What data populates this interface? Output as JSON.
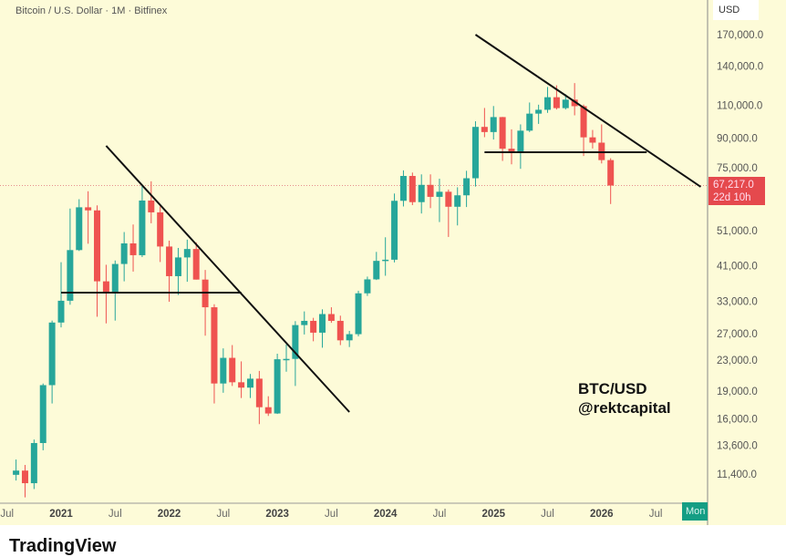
{
  "header": {
    "title": "Bitcoin / U.S. Dollar · 1M · Bitfinex",
    "currency": "USD"
  },
  "last_price": {
    "value": "67,217.0",
    "countdown": "22d 10h",
    "color": "#e5494d"
  },
  "time_marker": {
    "label": "Mon",
    "color": "#149e84"
  },
  "watermark": {
    "line1": "BTC/USD",
    "line2": "@rektcapital"
  },
  "brand": {
    "name": "TradingView"
  },
  "colors": {
    "background": "#fdfbd8",
    "up": "#26a69a",
    "down": "#ef5350",
    "drawings": "#111111"
  },
  "chart_data": {
    "type": "candlestick",
    "title": "Bitcoin / U.S. Dollar · 1M · Bitfinex",
    "y_scale": "log",
    "ylim": [
      10000,
      190000
    ],
    "y_ticks": [
      "170,000.0",
      "140,000.0",
      "110,000.0",
      "90,000.0",
      "75,000.0",
      "51,000.0",
      "41,000.0",
      "33,000.0",
      "27,000.0",
      "23,000.0",
      "19,000.0",
      "16,000.0",
      "13,600.0",
      "11,400.0"
    ],
    "x_ticks": [
      {
        "date": "2020-07",
        "label": "Jul"
      },
      {
        "date": "2021-01",
        "label": "2021"
      },
      {
        "date": "2021-07",
        "label": "Jul"
      },
      {
        "date": "2022-01",
        "label": "2022"
      },
      {
        "date": "2022-07",
        "label": "Jul"
      },
      {
        "date": "2023-01",
        "label": "2023"
      },
      {
        "date": "2023-07",
        "label": "Jul"
      },
      {
        "date": "2024-01",
        "label": "2024"
      },
      {
        "date": "2024-07",
        "label": "Jul"
      },
      {
        "date": "2025-01",
        "label": "2025"
      },
      {
        "date": "2025-07",
        "label": "Jul"
      },
      {
        "date": "2026-01",
        "label": "2026"
      },
      {
        "date": "2026-07",
        "label": "Jul"
      }
    ],
    "grid": false,
    "start": "2020-08",
    "columns": [
      "open",
      "high",
      "low",
      "close"
    ],
    "candles": [
      [
        11350,
        12470,
        10960,
        11650
      ],
      [
        11650,
        12060,
        9880,
        10780
      ],
      [
        10780,
        14100,
        10400,
        13800
      ],
      [
        13800,
        19900,
        13200,
        19700
      ],
      [
        19700,
        29300,
        17600,
        28950
      ],
      [
        28950,
        41950,
        28100,
        33100
      ],
      [
        33100,
        58350,
        32300,
        45200
      ],
      [
        45200,
        61800,
        44950,
        58800
      ],
      [
        58800,
        64900,
        47000,
        57700
      ],
      [
        57700,
        59500,
        30000,
        37300
      ],
      [
        37300,
        41300,
        28800,
        35000
      ],
      [
        35000,
        42400,
        29300,
        41500
      ],
      [
        41500,
        50500,
        37300,
        47100
      ],
      [
        47100,
        52900,
        39600,
        43800
      ],
      [
        43800,
        67000,
        43300,
        61300
      ],
      [
        61300,
        69000,
        53300,
        57000
      ],
      [
        57000,
        59100,
        42000,
        46200
      ],
      [
        46200,
        47900,
        32900,
        38500
      ],
      [
        38500,
        45800,
        34300,
        43200
      ],
      [
        43200,
        48200,
        37200,
        45500
      ],
      [
        45500,
        47400,
        37700,
        37700
      ],
      [
        37700,
        40000,
        26700,
        31800
      ],
      [
        31800,
        32400,
        17600,
        19900
      ],
      [
        19900,
        24700,
        18800,
        23300
      ],
      [
        23300,
        25200,
        19600,
        20050
      ],
      [
        20050,
        22800,
        18200,
        19400
      ],
      [
        19400,
        21100,
        18200,
        20500
      ],
      [
        20500,
        21500,
        15500,
        17200
      ],
      [
        17200,
        18400,
        16300,
        16550
      ],
      [
        16550,
        23900,
        16500,
        23100
      ],
      [
        23100,
        25300,
        21400,
        23150
      ],
      [
        23150,
        29200,
        19600,
        28500
      ],
      [
        28500,
        31000,
        26900,
        29250
      ],
      [
        29250,
        29800,
        25800,
        27200
      ],
      [
        27200,
        31400,
        24800,
        30500
      ],
      [
        30500,
        31800,
        28900,
        29250
      ],
      [
        29250,
        30200,
        25200,
        25950
      ],
      [
        25950,
        27500,
        24900,
        26950
      ],
      [
        26950,
        35200,
        26600,
        34650
      ],
      [
        34650,
        38400,
        34100,
        37750
      ],
      [
        37750,
        44700,
        37600,
        42300
      ],
      [
        42300,
        48900,
        38600,
        42600
      ],
      [
        42600,
        64000,
        41900,
        61200
      ],
      [
        61200,
        73800,
        59100,
        71300
      ],
      [
        71300,
        72800,
        59600,
        60700
      ],
      [
        60700,
        72000,
        56600,
        67500
      ],
      [
        67500,
        72000,
        58500,
        62700
      ],
      [
        62700,
        70100,
        53700,
        64700
      ],
      [
        64700,
        65600,
        49000,
        59000
      ],
      [
        59000,
        66500,
        52600,
        63300
      ],
      [
        63300,
        73600,
        58900,
        70300
      ],
      [
        70300,
        99800,
        66800,
        96400
      ],
      [
        96400,
        108300,
        90500,
        93400
      ],
      [
        93400,
        109600,
        89200,
        102400
      ],
      [
        102400,
        102500,
        78200,
        84300
      ],
      [
        84300,
        95000,
        76600,
        82500
      ],
      [
        82500,
        97900,
        74500,
        94200
      ],
      [
        94200,
        112000,
        93400,
        104600
      ],
      [
        104600,
        110500,
        98200,
        107100
      ],
      [
        107100,
        123200,
        105100,
        115700
      ],
      [
        115700,
        124500,
        107300,
        108200
      ],
      [
        108200,
        117900,
        107300,
        114000
      ],
      [
        114000,
        126200,
        103500,
        109500
      ],
      [
        109500,
        110600,
        80600,
        90400
      ],
      [
        90400,
        94600,
        84400,
        87500
      ],
      [
        87500,
        97900,
        77000,
        78600
      ],
      [
        78600,
        79500,
        60000,
        67217
      ]
    ],
    "current_price_line": 67217,
    "drawings": [
      {
        "type": "trendline",
        "from": [
          "2021-06",
          85800
        ],
        "to": [
          "2023-09",
          16700
        ]
      },
      {
        "type": "horizontal",
        "from": [
          "2021-01",
          34800
        ],
        "to": [
          "2022-09",
          34800
        ]
      },
      {
        "type": "trendline",
        "from": [
          "2024-11",
          170000
        ],
        "to": [
          "2026-12",
          66700
        ]
      },
      {
        "type": "horizontal",
        "from": [
          "2024-12",
          82500
        ],
        "to": [
          "2026-06",
          82500
        ]
      }
    ]
  }
}
